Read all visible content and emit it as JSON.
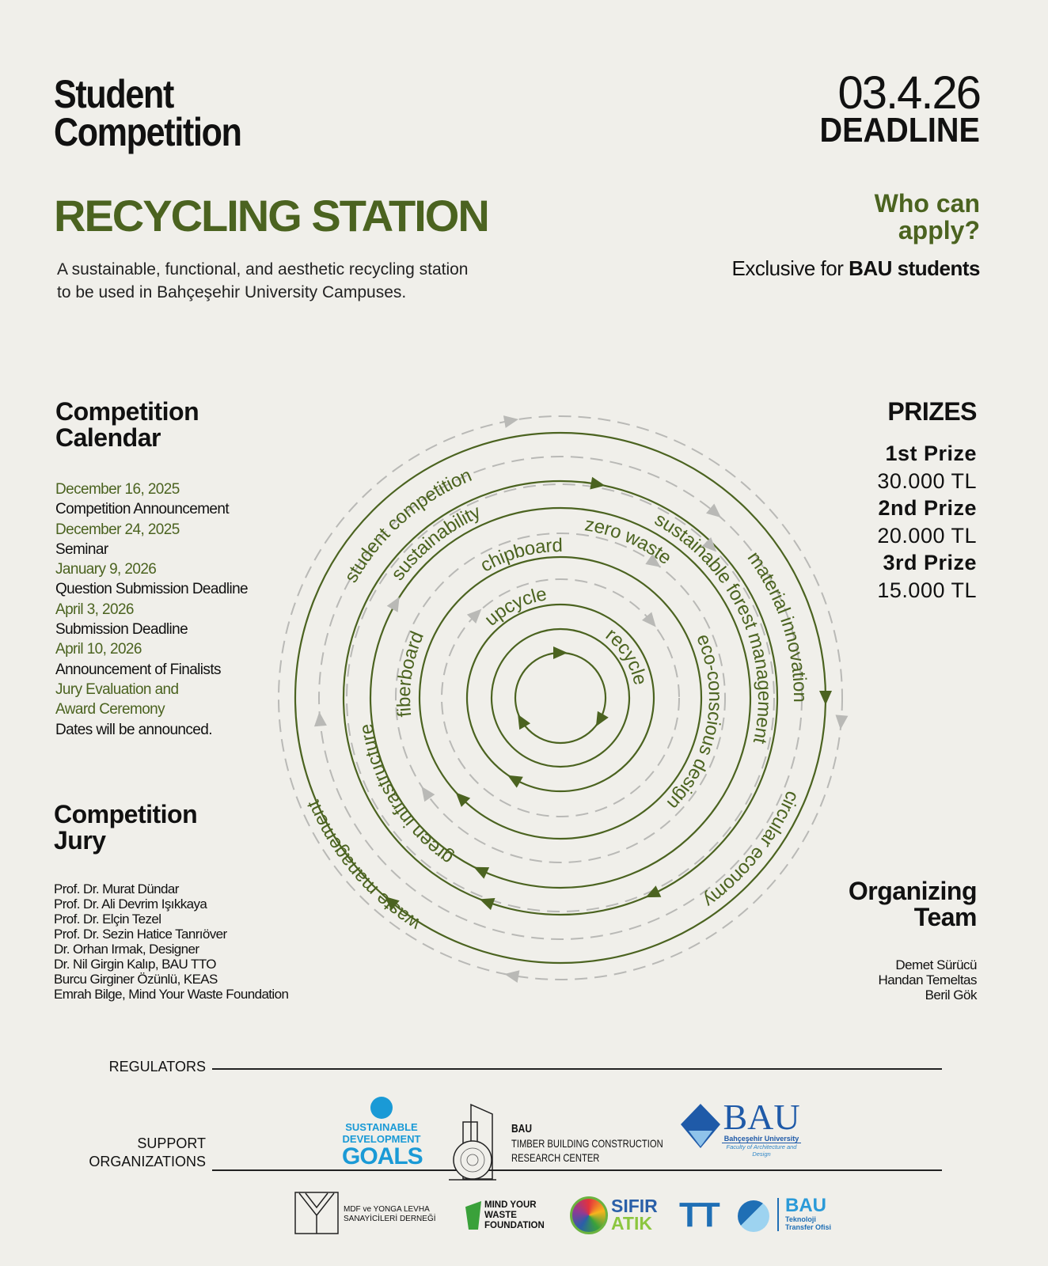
{
  "header": {
    "eyebrow_line1": "Student",
    "eyebrow_line2": "Competition",
    "date": "03.4.26",
    "deadline": "DEADLINE",
    "title": "RECYCLING STATION",
    "subtitle_line1": "A sustainable, functional, and aesthetic recycling station",
    "subtitle_line2": "to be used in Bahçeşehir University Campuses.",
    "who_line1": "Who can",
    "who_line2": "apply?",
    "exclusive_prefix": "Exclusive for ",
    "exclusive_bold": "BAU students"
  },
  "calendar": {
    "heading_line1": "Competition",
    "heading_line2": "Calendar",
    "items": [
      {
        "date": "December 16, 2025",
        "event": "Competition Announcement"
      },
      {
        "date": "December 24, 2025",
        "event": "Seminar"
      },
      {
        "date": "January 9, 2026",
        "event": "Question Submission Deadline"
      },
      {
        "date": "April 3, 2026",
        "event": "Submission Deadline"
      },
      {
        "date": "April 10, 2026",
        "event": "Announcement of Finalists"
      }
    ],
    "final_date_line1": "Jury Evaluation and",
    "final_date_line2": "Award Ceremony",
    "final_event": "Dates will be announced."
  },
  "prizes": {
    "heading": "PRIZES",
    "items": [
      {
        "label": "1st Prize",
        "amount": "30.000 TL"
      },
      {
        "label": "2nd Prize",
        "amount": "20.000 TL"
      },
      {
        "label": "3rd Prize",
        "amount": "15.000 TL"
      }
    ]
  },
  "jury": {
    "heading_line1": "Competition",
    "heading_line2": "Jury",
    "members": [
      "Prof. Dr. Murat Dündar",
      "Prof. Dr. Ali Devrim Işıkkaya",
      "Prof. Dr. Elçin Tezel",
      "Prof. Dr. Sezin Hatice Tanrıöver",
      "Dr. Orhan Irmak, Designer",
      "Dr. Nil Girgin Kalıp, BAU TTO",
      "Burcu Girginer Özünlü, KEAS",
      "Emrah Bilge, Mind Your Waste Foundation"
    ]
  },
  "organizing": {
    "heading_line1": "Organizing",
    "heading_line2": "Team",
    "members": [
      "Demet Sürücü",
      "Handan Temeltas",
      "Beril Gök"
    ]
  },
  "diagram": {
    "colors": {
      "green": "#4b6320",
      "grey": "#b9b9b6"
    },
    "labels": [
      {
        "text": "recycle",
        "r": 95,
        "start": 36
      },
      {
        "text": "upcycle",
        "r": 125,
        "start": -44
      },
      {
        "text": "chipboard",
        "r": 185,
        "start": -31
      },
      {
        "text": "fiberboard",
        "r": 190,
        "start": -97
      },
      {
        "text": "zero waste",
        "r": 214,
        "start": 8
      },
      {
        "text": "eco-conscious design",
        "r": 188,
        "start": 66
      },
      {
        "text": "sustainability",
        "r": 250,
        "start": -54
      },
      {
        "text": "sustainable forest management",
        "r": 250,
        "start": 28
      },
      {
        "text": "green infrastructure",
        "r": 240,
        "start": 214
      },
      {
        "text": "student competition",
        "r": 297,
        "start": -61
      },
      {
        "text": "material innovation",
        "r": 295,
        "start": 53
      },
      {
        "text": "circular economy",
        "r": 310,
        "start": 112
      },
      {
        "text": "waste management",
        "r": 332,
        "start": 212
      }
    ]
  },
  "footer": {
    "regulators_label": "REGULATORS",
    "support_label_line1": "SUPPORT",
    "support_label_line2": "ORGANIZATIONS",
    "regulators": [
      {
        "name": "Sustainable Development Goals",
        "line1": "SUSTAINABLE",
        "line2": "DEVELOPMENT",
        "line3": "GOALS",
        "color": "#1a9ad6"
      },
      {
        "name": "BAU Timber Building Construction Research Center",
        "line1": "BAU",
        "line2": "TIMBER BUILDING CONSTRUCTION",
        "line3": "RESEARCH CENTER"
      },
      {
        "name": "BAU Bahçeşehir University",
        "line1": "BAU",
        "line2": "Bahçeşehir University",
        "line3": "Faculty of Architecture and Design",
        "color": "#1f5aa8"
      }
    ],
    "support": [
      {
        "name": "MDF ve Yonga Levha Sanayicileri Derneği",
        "line1": "MDF ve  YONGA LEVHA",
        "line2": "SANAYİCİLERİ DERNEĞİ"
      },
      {
        "name": "Mind Your Waste Foundation",
        "line1": "MIND YOUR",
        "line2": "WASTE",
        "line3": "FOUNDATION",
        "color": "#3aa13a"
      },
      {
        "name": "Sıfır Atık",
        "line1": "SIFIR",
        "line2": "ATIK",
        "color": "#2a5fa8",
        "color2": "#8cc63f"
      },
      {
        "name": "TTO BAU Teknoloji Transfer Ofisi",
        "line1": "TT",
        "line2": "BAU",
        "line3": "Teknoloji",
        "line4": "Transfer Ofisi",
        "color": "#1f6fb5"
      }
    ]
  }
}
